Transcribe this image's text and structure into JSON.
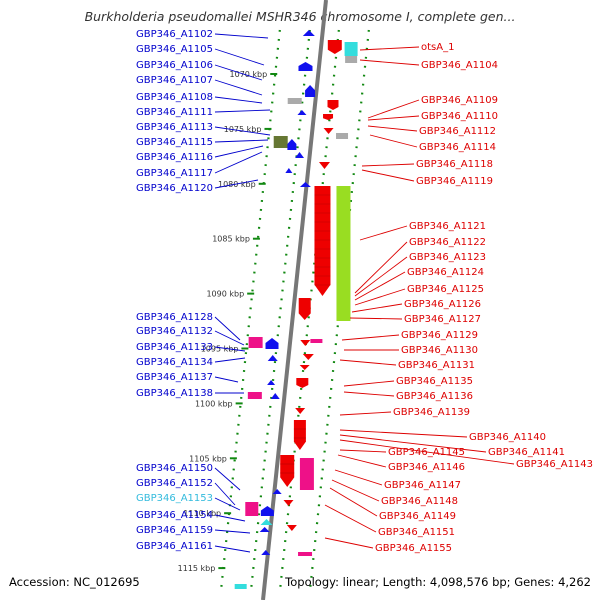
{
  "title": "Burkholderia pseudomallei MSHR346 chromosome I, complete gen...",
  "footer": {
    "accession": "Accession: NC_012695",
    "summary": "Topology: linear; Length: 4,098,576 bp; Genes: 4,262"
  },
  "colors": {
    "left_label": "#0000cc",
    "left_label_highlight": "#33bbdd",
    "right_label": "#dd0000",
    "gene_blue": "#1111ee",
    "gene_red": "#ee0000",
    "gene_pink": "#ee1188",
    "gene_green": "#99dd22",
    "gene_olive": "#667733",
    "gene_cyan": "#33dddd",
    "gene_gray": "#aaaaaa",
    "axis": "#888888",
    "track": "#118811"
  },
  "kbp_markers": [
    {
      "kbp": 1070,
      "text": "1070 kbp"
    },
    {
      "kbp": 1075,
      "text": "1075 kbp"
    },
    {
      "kbp": 1080,
      "text": "1080 kbp"
    },
    {
      "kbp": 1085,
      "text": "1085 kbp"
    },
    {
      "kbp": 1090,
      "text": "1090 kbp"
    },
    {
      "kbp": 1095,
      "text": "1095 kbp"
    },
    {
      "kbp": 1100,
      "text": "1100 kbp"
    },
    {
      "kbp": 1105,
      "text": "1105 kbp"
    },
    {
      "kbp": 1110,
      "text": "1110 kbp"
    },
    {
      "kbp": 1115,
      "text": "1115 kbp"
    }
  ],
  "left_labels": [
    {
      "text": "GBP346_A1102"
    },
    {
      "text": "GBP346_A1105"
    },
    {
      "text": "GBP346_A1106"
    },
    {
      "text": "GBP346_A1107"
    },
    {
      "text": "GBP346_A1108"
    },
    {
      "text": "GBP346_A1111"
    },
    {
      "text": "GBP346_A1113"
    },
    {
      "text": "GBP346_A1115"
    },
    {
      "text": "GBP346_A1116"
    },
    {
      "text": "GBP346_A1117"
    },
    {
      "text": "GBP346_A1120"
    },
    {
      "text": "GBP346_A1128"
    },
    {
      "text": "GBP346_A1132"
    },
    {
      "text": "GBP346_A1133"
    },
    {
      "text": "GBP346_A1134"
    },
    {
      "text": "GBP346_A1137"
    },
    {
      "text": "GBP346_A1138"
    },
    {
      "text": "GBP346_A1150"
    },
    {
      "text": "GBP346_A1152"
    },
    {
      "text": "GBP346_A1153",
      "highlight": true
    },
    {
      "text": "GBP346_A1154"
    },
    {
      "text": "GBP346_A1159"
    },
    {
      "text": "GBP346_A1161"
    }
  ],
  "right_labels": [
    {
      "text": "otsA_1"
    },
    {
      "text": "GBP346_A1104"
    },
    {
      "text": "GBP346_A1109"
    },
    {
      "text": "GBP346_A1110"
    },
    {
      "text": "GBP346_A1112"
    },
    {
      "text": "GBP346_A1114"
    },
    {
      "text": "GBP346_A1118"
    },
    {
      "text": "GBP346_A1119"
    },
    {
      "text": "GBP346_A1121"
    },
    {
      "text": "GBP346_A1122"
    },
    {
      "text": "GBP346_A1123"
    },
    {
      "text": "GBP346_A1124"
    },
    {
      "text": "GBP346_A1125"
    },
    {
      "text": "GBP346_A1126"
    },
    {
      "text": "GBP346_A1127"
    },
    {
      "text": "GBP346_A1129"
    },
    {
      "text": "GBP346_A1130"
    },
    {
      "text": "GBP346_A1131"
    },
    {
      "text": "GBP346_A1135"
    },
    {
      "text": "GBP346_A1136"
    },
    {
      "text": "GBP346_A1139"
    },
    {
      "text": "GBP346_A1140"
    },
    {
      "text": "GBP346_A1141"
    },
    {
      "text": "GBP346_A1143"
    },
    {
      "text": "GBP346_A1145"
    },
    {
      "text": "GBP346_A1146"
    },
    {
      "text": "GBP346_A1147"
    },
    {
      "text": "GBP346_A1148"
    },
    {
      "text": "GBP346_A1149"
    },
    {
      "text": "GBP346_A1151"
    },
    {
      "text": "GBP346_A1155"
    }
  ]
}
